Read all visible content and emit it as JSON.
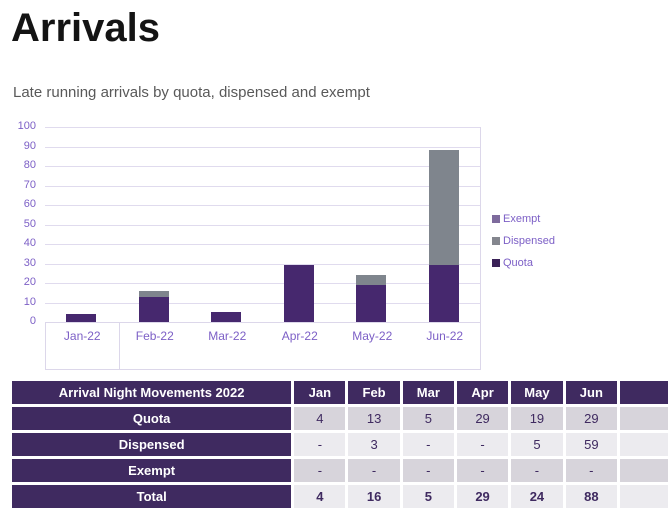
{
  "page": {
    "title": "Arrivals",
    "subtitle": "Late running arrivals by quota, dispensed and exempt"
  },
  "chart_data": {
    "type": "bar",
    "stacked": true,
    "title": "",
    "categories": [
      "Jan-22",
      "Feb-22",
      "Mar-22",
      "Apr-22",
      "May-22",
      "Jun-22"
    ],
    "series": [
      {
        "name": "Quota",
        "color": "#46286E",
        "values": [
          4,
          13,
          5,
          29,
          19,
          29
        ]
      },
      {
        "name": "Dispensed",
        "color": "#7F858D",
        "values": [
          0,
          3,
          0,
          0,
          5,
          59
        ]
      },
      {
        "name": "Exempt",
        "color": "#7E6B9D",
        "values": [
          0,
          0,
          0,
          0,
          0,
          0
        ]
      }
    ],
    "ylim": [
      0,
      100
    ],
    "ytick_step": 10,
    "grid": true,
    "legend_position": "right",
    "legend": [
      {
        "label": "Exempt",
        "color": "#7E6B9D"
      },
      {
        "label": "Dispensed",
        "color": "#84868E"
      },
      {
        "label": "Quota",
        "color": "#3A2157"
      }
    ]
  },
  "table": {
    "title_header": "Arrival Night Movements 2022",
    "month_headers": [
      "Jan",
      "Feb",
      "Mar",
      "Apr",
      "May",
      "Jun"
    ],
    "rows": [
      {
        "label": "Quota",
        "values": [
          "4",
          "13",
          "5",
          "29",
          "19",
          "29"
        ],
        "bold": false
      },
      {
        "label": "Dispensed",
        "values": [
          "-",
          "3",
          "-",
          "-",
          "5",
          "59"
        ],
        "bold": false
      },
      {
        "label": "Exempt",
        "values": [
          "-",
          "-",
          "-",
          "-",
          "-",
          "-"
        ],
        "bold": false
      },
      {
        "label": "Total",
        "values": [
          "4",
          "16",
          "5",
          "29",
          "24",
          "88"
        ],
        "bold": true
      }
    ]
  },
  "colors": {
    "quota": "#46286E",
    "dispensed": "#7F858D",
    "exempt": "#7E6B9D",
    "axis_text": "#7C5FC6",
    "gridline": "#E0DBEE",
    "table_header_bg": "#3F2A60",
    "row_shaded": "#D7D4DB",
    "row_light": "#ECEBEF",
    "subtitle_text": "#595959"
  }
}
